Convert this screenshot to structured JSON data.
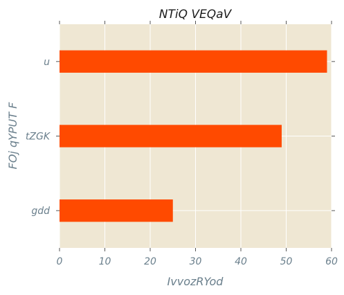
{
  "chart_data": {
    "type": "bar",
    "orientation": "horizontal",
    "title": "NTiQ  VEQaV",
    "xlabel": "IvvozRYod",
    "ylabel": "FOj qYPUT  F",
    "categories": [
      "gdd",
      "tZGK",
      "u"
    ],
    "values": [
      25,
      49,
      59
    ],
    "xlim": [
      0,
      60
    ],
    "xticks": [
      0,
      10,
      20,
      30,
      40,
      50,
      60
    ],
    "grid": true,
    "colors": {
      "bar": "#ff4a00",
      "background": "#efe7d3",
      "grid": "#ffffff",
      "tick_text": "#6a7f8c"
    }
  }
}
